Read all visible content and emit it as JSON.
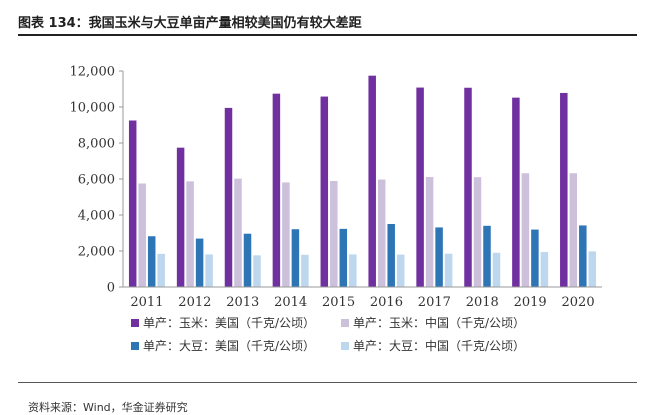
{
  "title": "图表 134：我国玉米与大豆单亩产量相较美国仍有较大差距",
  "source": "资料来源：Wind，华金证券研究",
  "chart_data": {
    "type": "bar",
    "categories": [
      "2011",
      "2012",
      "2013",
      "2014",
      "2015",
      "2016",
      "2017",
      "2018",
      "2019",
      "2020"
    ],
    "ylim": [
      0,
      12000
    ],
    "yticks": [
      "0",
      "2,000",
      "4,000",
      "6,000",
      "8,000",
      "10,000",
      "12,000"
    ],
    "ytick_values": [
      0,
      2000,
      4000,
      6000,
      8000,
      10000,
      12000
    ],
    "grid": false,
    "legend_position": "bottom",
    "series": [
      {
        "name": "单产：玉米：美国（千克/公顷）",
        "color": "#7030a0",
        "values": [
          9250,
          7740,
          9950,
          10740,
          10580,
          11740,
          11080,
          11070,
          10520,
          10780
        ]
      },
      {
        "name": "单产：玉米：中国（千克/公顷）",
        "color": "#ccc0da",
        "values": [
          5750,
          5870,
          6020,
          5810,
          5890,
          5970,
          6110,
          6100,
          6320,
          6320
        ]
      },
      {
        "name": "单产：大豆：美国（千克/公顷）",
        "color": "#2e75b6",
        "values": [
          2820,
          2690,
          2960,
          3210,
          3230,
          3500,
          3310,
          3400,
          3190,
          3420
        ]
      },
      {
        "name": "单产：大豆：中国（千克/公顷）",
        "color": "#bdd7ee",
        "values": [
          1840,
          1810,
          1760,
          1790,
          1810,
          1800,
          1850,
          1900,
          1940,
          1980
        ]
      }
    ]
  }
}
